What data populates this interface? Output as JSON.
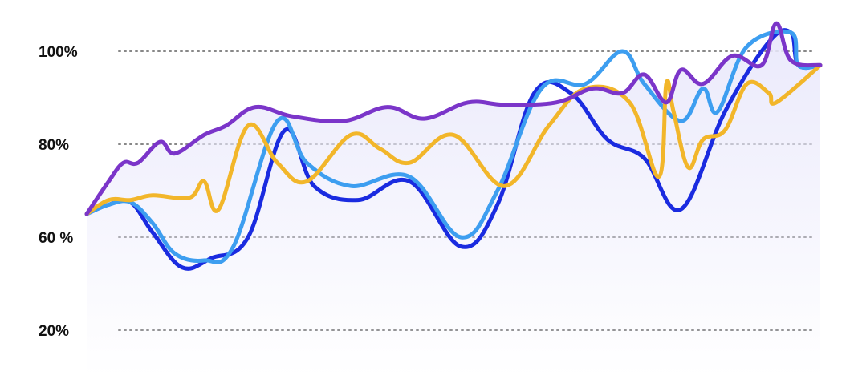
{
  "chart_data": {
    "type": "line",
    "title": "",
    "xlabel": "",
    "ylabel": "",
    "grid": true,
    "y_tick_labels": [
      {
        "value": 100,
        "label": "100%"
      },
      {
        "value": 80,
        "label": "80%"
      },
      {
        "value": 60,
        "label": "60 %"
      },
      {
        "value": 20,
        "label": "20%"
      }
    ],
    "colors": {
      "grid": "#888888",
      "area_fill": "#e9e8fb",
      "series": [
        "#1a2be0",
        "#3d9ef0",
        "#f2b62a",
        "#7b35c9"
      ]
    },
    "series": [
      {
        "points": [
          [
            0,
            65
          ],
          [
            3,
            67
          ],
          [
            6,
            67.5
          ],
          [
            9,
            61
          ],
          [
            13,
            47
          ],
          [
            17,
            51
          ],
          [
            22,
            60
          ],
          [
            27,
            83
          ],
          [
            31,
            71
          ],
          [
            37,
            68
          ],
          [
            44,
            72
          ],
          [
            51,
            56
          ],
          [
            56,
            67
          ],
          [
            61,
            91
          ],
          [
            66,
            91
          ],
          [
            71,
            81
          ],
          [
            76,
            77
          ],
          [
            81,
            66
          ],
          [
            87,
            87
          ],
          [
            93,
            102
          ],
          [
            96,
            104
          ],
          [
            97,
            97
          ],
          [
            100,
            97
          ]
        ]
      },
      {
        "points": [
          [
            0,
            65
          ],
          [
            3,
            67
          ],
          [
            6,
            67.5
          ],
          [
            9,
            63
          ],
          [
            12,
            53
          ],
          [
            16,
            50
          ],
          [
            20,
            56
          ],
          [
            26,
            85
          ],
          [
            30,
            76
          ],
          [
            36,
            71
          ],
          [
            44,
            73
          ],
          [
            51,
            60
          ],
          [
            56,
            70
          ],
          [
            62,
            92
          ],
          [
            68,
            93
          ],
          [
            73,
            100
          ],
          [
            76,
            93
          ],
          [
            81,
            85
          ],
          [
            84,
            92
          ],
          [
            86,
            87
          ],
          [
            90,
            101
          ],
          [
            96,
            104
          ],
          [
            97,
            97
          ],
          [
            100,
            97
          ]
        ]
      },
      {
        "points": [
          [
            0,
            65
          ],
          [
            3,
            68
          ],
          [
            6,
            68
          ],
          [
            9,
            69
          ],
          [
            14,
            68.5
          ],
          [
            16,
            72
          ],
          [
            18,
            66
          ],
          [
            22,
            84
          ],
          [
            26,
            76
          ],
          [
            30,
            72
          ],
          [
            36,
            82
          ],
          [
            40,
            79
          ],
          [
            44,
            76
          ],
          [
            50,
            82
          ],
          [
            57,
            71
          ],
          [
            63,
            84
          ],
          [
            68,
            92
          ],
          [
            74,
            89
          ],
          [
            78,
            73
          ],
          [
            79,
            93
          ],
          [
            80,
            87
          ],
          [
            82,
            75
          ],
          [
            84,
            81
          ],
          [
            87,
            83
          ],
          [
            90,
            93
          ],
          [
            93,
            91
          ],
          [
            94,
            89
          ],
          [
            100,
            97
          ]
        ]
      },
      {
        "points": [
          [
            0,
            65
          ],
          [
            3,
            72
          ],
          [
            5,
            76
          ],
          [
            7,
            76
          ],
          [
            10,
            80.5
          ],
          [
            12,
            78
          ],
          [
            16,
            82
          ],
          [
            19,
            84
          ],
          [
            23,
            88
          ],
          [
            28,
            86
          ],
          [
            35,
            85
          ],
          [
            41,
            88
          ],
          [
            46,
            85.5
          ],
          [
            52,
            89
          ],
          [
            57,
            88.5
          ],
          [
            64,
            89
          ],
          [
            69,
            92
          ],
          [
            73,
            91
          ],
          [
            76,
            95
          ],
          [
            79,
            89
          ],
          [
            81,
            96
          ],
          [
            84,
            93
          ],
          [
            88,
            99
          ],
          [
            92,
            97
          ],
          [
            94,
            106
          ],
          [
            96,
            98
          ],
          [
            100,
            97
          ]
        ]
      }
    ]
  }
}
